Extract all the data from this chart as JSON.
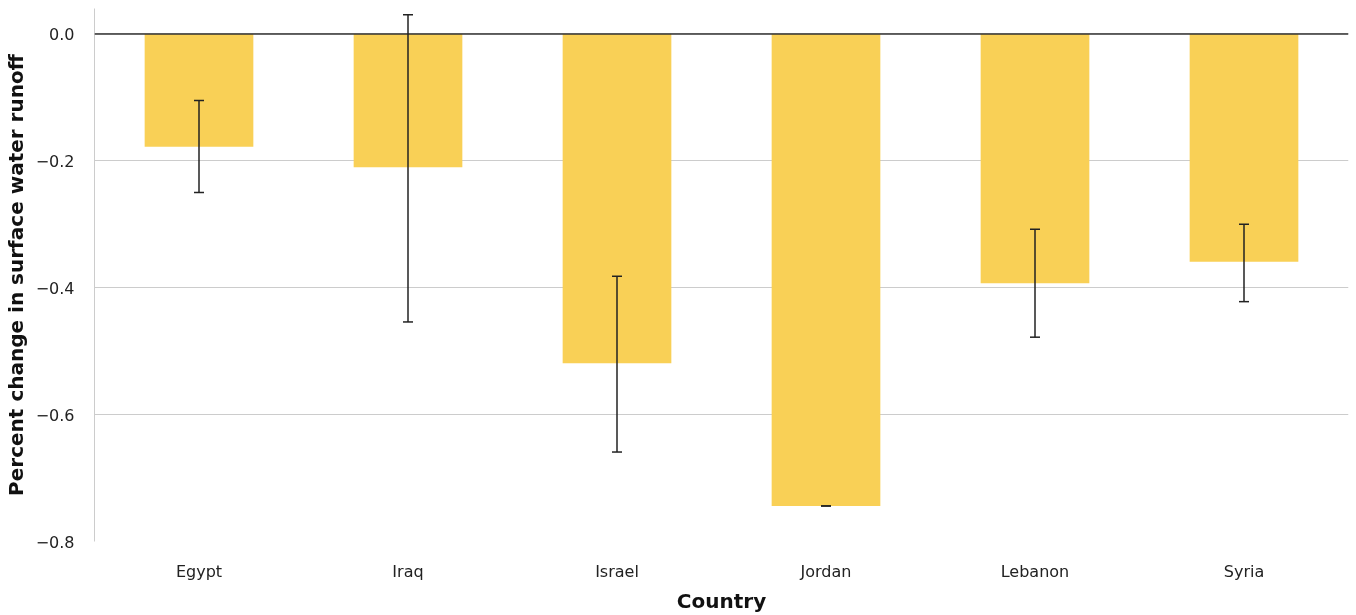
{
  "chart_data": {
    "type": "bar",
    "xlabel": "Country",
    "ylabel": "Percent change in surface water runoff",
    "categories": [
      "Egypt",
      "Iraq",
      "Israel",
      "Jordan",
      "Lebanon",
      "Syria"
    ],
    "values": [
      -0.178,
      -0.21,
      -0.519,
      -0.744,
      -0.393,
      -0.359
    ],
    "errors": [
      [
        -0.25,
        -0.105
      ],
      [
        -0.454,
        0.03
      ],
      [
        -0.659,
        -0.382
      ],
      [
        -0.744,
        -0.744
      ],
      [
        -0.478,
        -0.308
      ],
      [
        -0.422,
        -0.3
      ]
    ],
    "color": "#f9d056",
    "ylim": [
      -0.8,
      0.04
    ],
    "yticks": [
      {
        "value": 0,
        "label": "0.0"
      },
      {
        "value": -0.2,
        "label": "−0.2"
      },
      {
        "value": -0.4,
        "label": "−0.4"
      },
      {
        "value": -0.6,
        "label": "−0.6"
      },
      {
        "value": -0.8,
        "label": "−0.8"
      }
    ],
    "grid": "y",
    "ref_lines": [
      {
        "axis": "y",
        "value": 0,
        "color": "#333333"
      }
    ]
  }
}
